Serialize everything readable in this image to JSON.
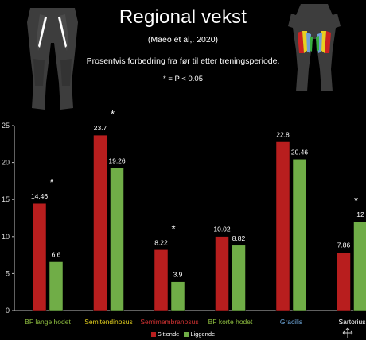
{
  "header": {
    "title": "Regional vekst",
    "subtitle": "(Maeo et al,. 2020)",
    "description": "Prosentvis forbedring fra før til etter treningsperiode.",
    "p_note": "* = P < 0.05"
  },
  "figures": {
    "left_icon": "muscle-figure-back-icon",
    "right_icon": "muscle-figure-hamstring-regions-icon",
    "region_colors": [
      "#cc2222",
      "#e8d020",
      "#6fa0d8",
      "#38b040"
    ]
  },
  "colors": {
    "sittende": "#b81e1e",
    "liggende": "#70ad47",
    "axis": "#bfbfbf",
    "background": "#000000"
  },
  "chart_data": {
    "type": "bar",
    "categories": [
      "BF lange hodet",
      "Semitendinosus",
      "Semimembranosus",
      "BF korte hodet",
      "Gracilis",
      "Sartorius"
    ],
    "category_colors": [
      "#8fbf40",
      "#e6d21e",
      "#d23232",
      "#8fbf40",
      "#6fa8dc",
      "#ffffff"
    ],
    "series": [
      {
        "name": "Sittende",
        "values": [
          14.46,
          23.7,
          8.22,
          10.02,
          22.8,
          7.86
        ],
        "labels": [
          "14.46",
          "23.7",
          "8.22",
          "10.02",
          "22.8",
          "7.86"
        ]
      },
      {
        "name": "Liggende",
        "values": [
          6.6,
          19.26,
          3.9,
          8.82,
          20.46,
          12
        ],
        "labels": [
          "6.6",
          "19.26",
          "3.9",
          "8.82",
          "20.46",
          "12"
        ]
      }
    ],
    "significance": [
      true,
      true,
      true,
      false,
      false,
      true
    ],
    "significance_marker": "*",
    "yticks": [
      0,
      5,
      10,
      15,
      20,
      25
    ],
    "ylim": [
      0,
      25
    ],
    "grid": false,
    "legend_position": "bottom"
  },
  "corner_icon": "expand-arrows-icon"
}
